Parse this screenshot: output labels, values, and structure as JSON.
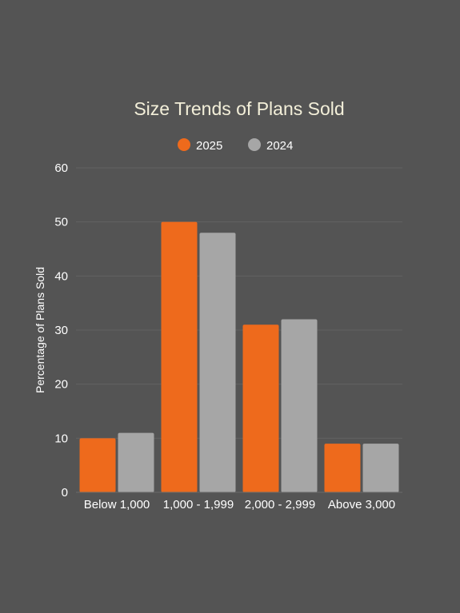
{
  "chart_data": {
    "type": "bar",
    "title": "Size Trends of Plans Sold",
    "xlabel": "",
    "ylabel": "Percentage of Plans Sold",
    "categories": [
      "Below 1,000",
      "1,000 - 1,999",
      "2,000 - 2,999",
      "Above 3,000"
    ],
    "series": [
      {
        "name": "2025",
        "color": "#ee6a1c",
        "values": [
          10,
          50,
          31,
          9
        ]
      },
      {
        "name": "2024",
        "color": "#a6a6a6",
        "values": [
          11,
          48,
          32,
          9
        ]
      }
    ],
    "ylim": [
      0,
      60
    ],
    "yticks": [
      "0",
      "10",
      "20",
      "30",
      "40",
      "50",
      "60"
    ],
    "grid": true,
    "legend": "top-center"
  }
}
